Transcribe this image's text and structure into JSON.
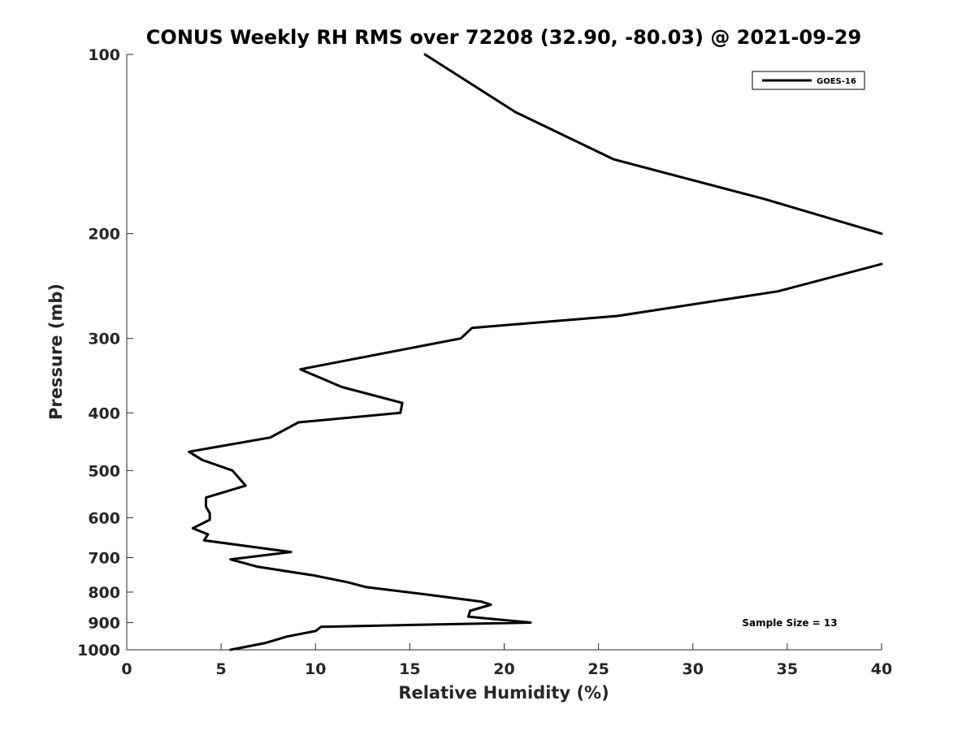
{
  "chart_data": {
    "type": "line",
    "title": "CONUS Weekly RH RMS over 72208 (32.90, -80.03) @ 2021-09-29",
    "xlabel": "Relative Humidity (%)",
    "ylabel": "Pressure (mb)",
    "xlim": [
      0,
      40
    ],
    "ylim": [
      100,
      1000
    ],
    "y_scale": "log",
    "y_reversed": true,
    "grid": false,
    "legend_position": "top-right",
    "x_ticks": [
      "0",
      "5",
      "10",
      "15",
      "20",
      "25",
      "30",
      "35",
      "40"
    ],
    "y_ticks": [
      "100",
      "200",
      "300",
      "400",
      "500",
      "600",
      "700",
      "800",
      "900",
      "1000"
    ],
    "series": [
      {
        "name": "GOES-16",
        "color": "#000000",
        "segments": [
          {
            "x": [
              15.8,
              20.6,
              25.8,
              33.8,
              40.0
            ],
            "y": [
              100,
              125,
              150,
              175,
              200
            ]
          },
          {
            "x": [
              40.0,
              34.5,
              26.0,
              18.3,
              17.7,
              9.2,
              11.4,
              14.6,
              14.5,
              9.1,
              7.6,
              3.3,
              4.0,
              5.6,
              6.3,
              4.2,
              4.2,
              4.4,
              4.4,
              3.5,
              4.3,
              4.1,
              8.7,
              5.5,
              6.9,
              9.9,
              11.7,
              12.7,
              16.2,
              18.8,
              19.3,
              18.2,
              18.1,
              21.4,
              10.3,
              10.0,
              8.5,
              7.3,
              5.5
            ],
            "y": [
              225,
              250,
              275,
              288,
              300,
              338,
              362,
              385,
              400,
              415,
              440,
              465,
              480,
              500,
              530,
              555,
              575,
              590,
              605,
              625,
              640,
              655,
              685,
              705,
              725,
              750,
              770,
              785,
              810,
              830,
              840,
              860,
              880,
              900,
              915,
              930,
              950,
              975,
              1000
            ]
          }
        ]
      }
    ],
    "annotations": [
      "Sample Size = 13"
    ]
  }
}
